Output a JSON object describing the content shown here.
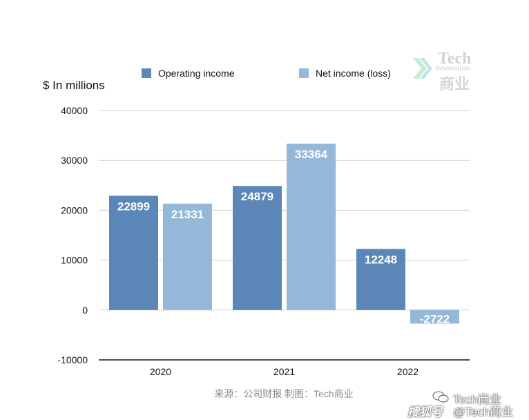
{
  "chart_data": {
    "type": "bar",
    "categories": [
      "2020",
      "2021",
      "2022"
    ],
    "series": [
      {
        "name": "Operating income",
        "values": [
          22899,
          24879,
          12248
        ],
        "color": "#5b86b8"
      },
      {
        "name": "Net income (loss)",
        "values": [
          21331,
          33364,
          -2722
        ],
        "color": "#95b8d9"
      }
    ],
    "data_labels": [
      [
        "22899",
        "24879",
        "12248"
      ],
      [
        "21331",
        "33364",
        "-2722"
      ]
    ],
    "title": "",
    "xlabel": "",
    "ylabel": "",
    "ylim": [
      -10000,
      40000
    ],
    "yticks": [
      40000,
      30000,
      20000,
      10000,
      0,
      -10000
    ],
    "yticklabels": [
      "40000",
      "30000",
      "20000",
      "10000",
      "0",
      "-10000"
    ],
    "grid": true,
    "legend_position": "top"
  },
  "unit_label": "$ In millions",
  "source_note": "来源：公司财报 制图：Tech商业",
  "watermarks": {
    "logo_line1": "Tech",
    "logo_line2": "Innovation",
    "logo_line3": "商业",
    "account_line1": "Tech商业",
    "account_line2": "@Tech商业",
    "platform": "搜狐号",
    "chat_icon": "wechat-icon"
  }
}
